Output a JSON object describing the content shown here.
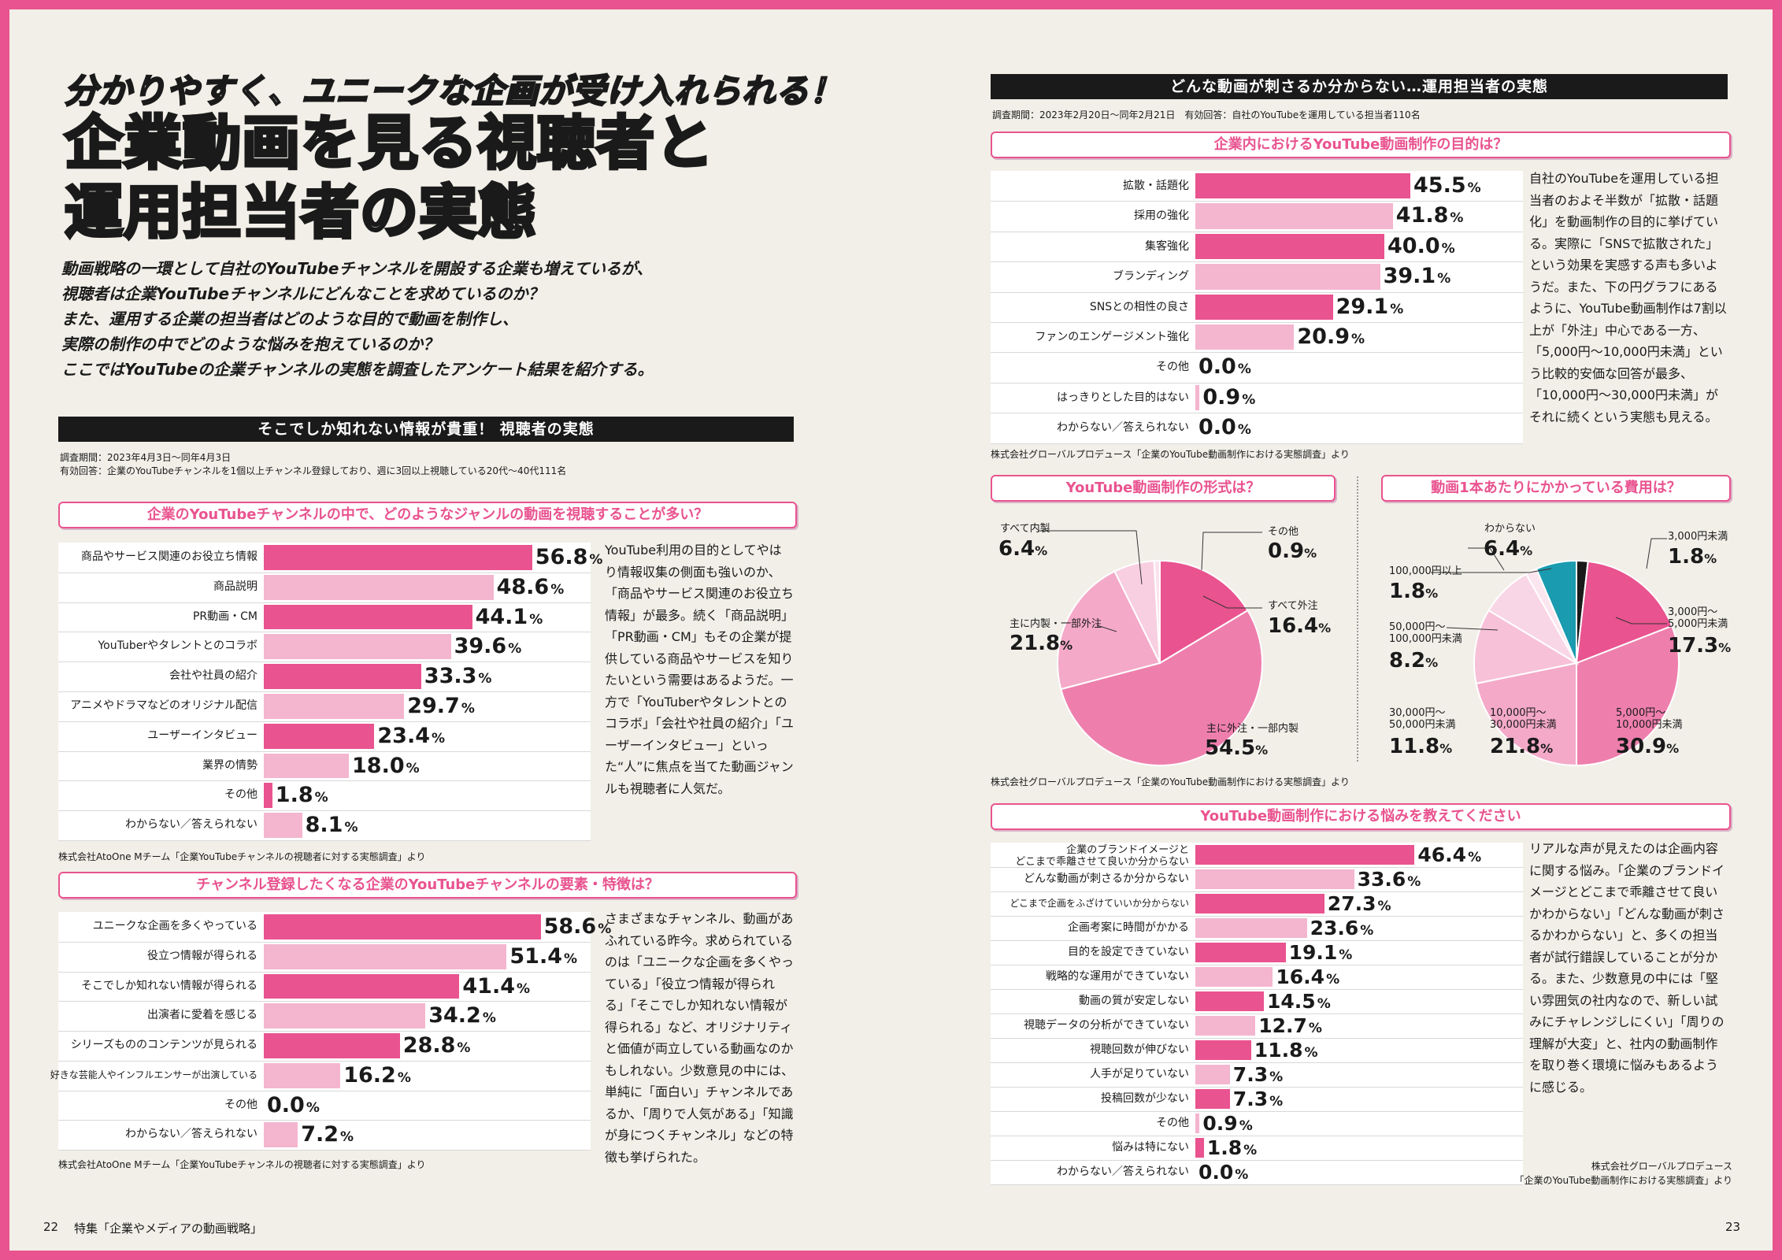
{
  "colors": {
    "pink": "#e9538f",
    "light": "#f4b5cf",
    "bg": "#f1efe8"
  },
  "header": {
    "subtitle": "分かりやすく、ユニークな企画が受け入れられる！",
    "title1": "企業動画を見る視聴者と",
    "title2": "運用担当者の実態",
    "intro": [
      "動画戦略の一環として自社のYouTubeチャンネルを開設する企業も増えているが、",
      "視聴者は企業YouTubeチャンネルにどんなことを求めているのか？",
      "また、運用する企業の担当者はどのような目的で動画を制作し、",
      "実際の制作の中でどのような悩みを抱えているのか？",
      "ここではYouTubeの企業チャンネルの実態を調査したアンケート結果を紹介する。"
    ]
  },
  "left_section": {
    "title": "そこでしか知れない情報が貴重！ 視聴者の実態",
    "period": "調査期間：2023年4月3日〜同年4月3日",
    "respondents": "有効回答：企業のYouTubeチャンネルを1個以上チャンネル登録しており、週に3回以上視聴している20代〜40代111名"
  },
  "right_section": {
    "title": "どんな動画が刺さるか分からない…運用担当者の実態",
    "meta": "調査期間：2023年2月20日〜同年2月21日　有効回答：自社のYouTubeを運用している担当者110名"
  },
  "chart_data": [
    {
      "type": "bar",
      "title": "企業のYouTubeチャンネルの中で、どのようなジャンルの動画を視聴することが多い？",
      "categories": [
        "商品やサービス関連のお役立ち情報",
        "商品説明",
        "PR動画・CM",
        "YouTuberやタレントとのコラボ",
        "会社や社員の紹介",
        "アニメやドラマなどのオリジナル配信",
        "ユーザーインタビュー",
        "業界の情勢",
        "その他",
        "わからない／答えられない"
      ],
      "values": [
        56.8,
        48.6,
        44.1,
        39.6,
        33.3,
        29.7,
        23.4,
        18.0,
        1.8,
        8.1
      ],
      "source": "株式会社AtoOne Mチーム「企業YouTubeチャンネルの視聴者に対する実態調査」より"
    },
    {
      "type": "bar",
      "title": "チャンネル登録したくなる企業のYouTubeチャンネルの要素・特徴は？",
      "categories": [
        "ユニークな企画を多くやっている",
        "役立つ情報が得られる",
        "そこでしか知れない情報が得られる",
        "出演者に愛着を感じる",
        "シリーズもののコンテンツが見られる",
        "好きな芸能人やインフルエンサーが出演している",
        "その他",
        "わからない／答えられない"
      ],
      "values": [
        58.6,
        51.4,
        41.4,
        34.2,
        28.8,
        16.2,
        0.0,
        7.2
      ],
      "source": "株式会社AtoOne Mチーム「企業YouTubeチャンネルの視聴者に対する実態調査」より"
    },
    {
      "type": "bar",
      "title": "企業内におけるYouTube動画制作の目的は？",
      "categories": [
        "拡散・話題化",
        "採用の強化",
        "集客強化",
        "ブランディング",
        "SNSとの相性の良さ",
        "ファンのエンゲージメント強化",
        "その他",
        "はっきりとした目的はない",
        "わからない／答えられない"
      ],
      "values": [
        45.5,
        41.8,
        40.0,
        39.1,
        29.1,
        20.9,
        0.0,
        0.9,
        0.0
      ],
      "source": "株式会社グローバルプロデュース「企業のYouTube動画制作における実態調査」より"
    },
    {
      "type": "pie",
      "title": "YouTube動画制作の形式は？",
      "categories": [
        "すべて外注",
        "主に外注・一部内製",
        "主に内製・一部外注",
        "すべて内製",
        "その他"
      ],
      "values": [
        16.4,
        54.5,
        21.8,
        6.4,
        0.9
      ]
    },
    {
      "type": "pie",
      "title": "動画1本あたりにかかっている費用は？",
      "categories": [
        "3,000円未満",
        "3,000円〜5,000円未満",
        "5,000円〜10,000円未満",
        "10,000円〜30,000円未満",
        "30,000円〜50,000円未満",
        "50,000円〜100,000円未満",
        "100,000円以上",
        "わからない"
      ],
      "values": [
        1.8,
        17.3,
        30.9,
        21.8,
        11.8,
        8.2,
        1.8,
        6.4
      ],
      "source": "株式会社グローバルプロデュース「企業のYouTube動画制作における実態調査」より"
    },
    {
      "type": "bar",
      "title": "YouTube動画制作における悩みを教えてください",
      "categories": [
        "企業のブランドイメージとどこまで乖離させて良いか分からない",
        "どんな動画が刺さるか分からない",
        "どこまで企画をふざけていいか分からない",
        "企画考案に時間がかかる",
        "目的を設定できていない",
        "戦略的な運用ができていない",
        "動画の質が安定しない",
        "視聴データの分析ができていない",
        "視聴回数が伸びない",
        "人手が足りていない",
        "投稿回数が少ない",
        "その他",
        "悩みは特にない",
        "わからない／答えられない"
      ],
      "values": [
        46.4,
        33.6,
        27.3,
        23.6,
        19.1,
        16.4,
        14.5,
        12.7,
        11.8,
        7.3,
        7.3,
        0.9,
        1.8,
        0.0
      ],
      "source": "株式会社グローバルプロデュース「企業のYouTube動画制作における実態調査」より"
    }
  ],
  "chart_labels": {
    "c1": [
      "商品やサービス関連のお役立ち情報",
      "商品説明",
      "PR動画・CM",
      "YouTuberやタレントとのコラボ",
      "会社や社員の紹介",
      "アニメやドラマなどのオリジナル配信",
      "ユーザーインタビュー",
      "業界の情勢",
      "その他",
      "わからない／答えられない"
    ],
    "c6a": "企業のブランドイメージと",
    "c6b": "どこまで乖離させて良いか分からない",
    "pie1": {
      "l0": "すべて外注",
      "l1": "主に外注・一部内製",
      "l2": "主に内製・一部外注",
      "l3": "すべて内製",
      "l4": "その他"
    },
    "pie2": {
      "l0": "3,000円未満",
      "l1a": "3,000円〜",
      "l1b": "5,000円未満",
      "l2a": "5,000円〜",
      "l2b": "10,000円未満",
      "l3a": "10,000円〜",
      "l3b": "30,000円未満",
      "l4a": "30,000円〜",
      "l4b": "50,000円未満",
      "l5a": "50,000円〜",
      "l5b": "100,000円未満",
      "l6": "100,000円以上",
      "l7": "わからない"
    },
    "pie_source": "株式会社グローバルプロデュース「企業のYouTube動画制作における実態調査」より",
    "c6_source_a": "株式会社グローバルプロデュース",
    "c6_source_b": "「企業のYouTube動画制作における実態調査」より"
  },
  "texts": {
    "t1": "YouTube利用の目的としてやはり情報収集の側面も強いのか、「商品やサービス関連のお役立ち情報」が最多。続く「商品説明」「PR動画・CM」もその企業が提供している商品やサービスを知りたいという需要はあるようだ。一方で「YouTuberやタレントとのコラボ」「会社や社員の紹介」「ユーザーインタビュー」といった“人”に焦点を当てた動画ジャンルも視聴者に人気だ。",
    "t2": "さまざまなチャンネル、動画があふれている昨今。求められているのは「ユニークな企画を多くやっている」「役立つ情報が得られる」「そこでしか知れない情報が得られる」など、オリジナリティと価値が両立している動画なのかもしれない。少数意見の中には、単純に「面白い」チャンネルであるか、「周りで人気がある」「知識が身につくチャンネル」などの特徴も挙げられた。",
    "t3": "自社のYouTubeを運用している担当者のおよそ半数が「拡散・話題化」を動画制作の目的に挙げている。実際に「SNSで拡散された」という効果を実感する声も多いようだ。また、下の円グラフにあるように、YouTube動画制作は7割以上が「外注」中心である一方、「5,000円〜10,000円未満」という比較的安価な回答が最多、「10,000円〜30,000円未満」がそれに続くという実態も見える。",
    "t4": "リアルな声が見えたのは企画内容に関する悩み。「企業のブランドイメージとどこまで乖離させて良いかわからない」「どんな動画が刺さるかわからない」と、多くの担当者が試行錯誤していることが分かる。また、少数意見の中には「堅い雰囲気の社内なので、新しい試みにチャレンジしにくい」「周りの理解が大変」と、社内の動画制作を取り巻く環境に悩みもあるように感じる。"
  },
  "footer": {
    "left_page": "22",
    "left_title": "特集「企業やメディアの動画戦略」",
    "right_page": "23"
  },
  "pct": "%"
}
